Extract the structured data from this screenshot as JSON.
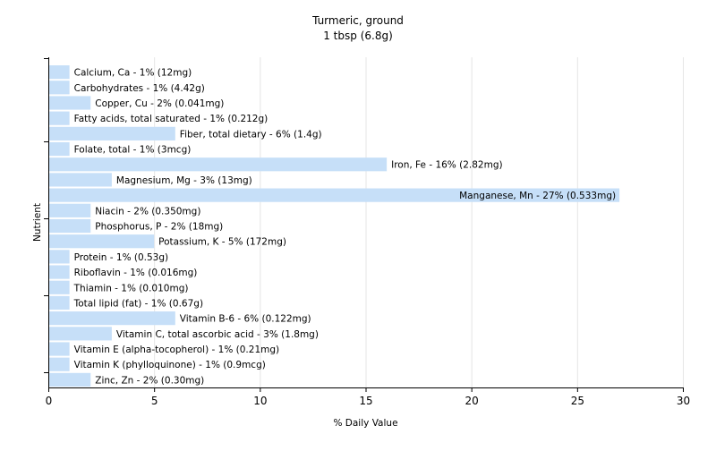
{
  "chart_data": {
    "type": "bar",
    "orientation": "horizontal",
    "title": "Turmeric, ground",
    "subtitle": "1 tbsp (6.8g)",
    "xlabel": "% Daily Value",
    "ylabel": "Nutrient",
    "xlim": [
      0,
      30
    ],
    "xticks": [
      0,
      5,
      10,
      15,
      20,
      25,
      30
    ],
    "grid": true,
    "bar_color": "#c6dff8",
    "grid_color": "#e6e6e6",
    "categories": [
      "Calcium, Ca - 1% (12mg)",
      "Carbohydrates - 1% (4.42g)",
      "Copper, Cu - 2% (0.041mg)",
      "Fatty acids, total saturated - 1% (0.212g)",
      "Fiber, total dietary - 6% (1.4g)",
      "Folate, total - 1% (3mcg)",
      "Iron, Fe - 16% (2.82mg)",
      "Magnesium, Mg - 3% (13mg)",
      "Manganese, Mn - 27% (0.533mg)",
      "Niacin - 2% (0.350mg)",
      "Phosphorus, P - 2% (18mg)",
      "Potassium, K - 5% (172mg)",
      "Protein - 1% (0.53g)",
      "Riboflavin - 1% (0.016mg)",
      "Thiamin - 1% (0.010mg)",
      "Total lipid (fat) - 1% (0.67g)",
      "Vitamin B-6 - 6% (0.122mg)",
      "Vitamin C, total ascorbic acid - 3% (1.8mg)",
      "Vitamin E (alpha-tocopherol) - 1% (0.21mg)",
      "Vitamin K (phylloquinone) - 1% (0.9mcg)",
      "Zinc, Zn - 2% (0.30mg)"
    ],
    "values": [
      1,
      1,
      2,
      1,
      6,
      1,
      16,
      3,
      27,
      2,
      2,
      5,
      1,
      1,
      1,
      1,
      6,
      3,
      1,
      1,
      2
    ]
  }
}
